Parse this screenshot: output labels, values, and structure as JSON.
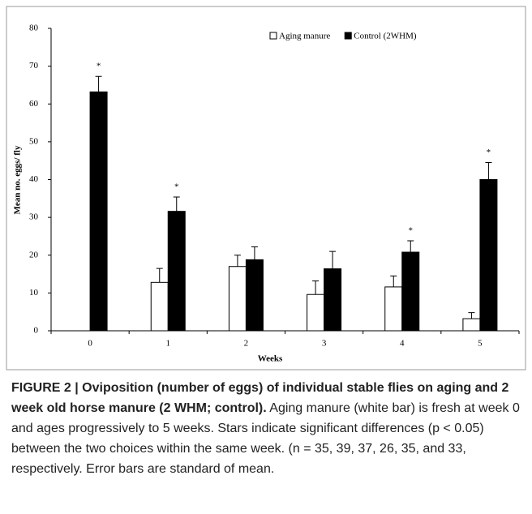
{
  "chart_data": {
    "type": "bar",
    "ylabel": "Mean no. eggs/ fly",
    "xlabel": "Weeks",
    "categories": [
      "0",
      "1",
      "2",
      "3",
      "4",
      "5"
    ],
    "series": [
      {
        "name": "Aging manure",
        "color": "#ffffff",
        "values": [
          0,
          12.8,
          17,
          9.6,
          11.6,
          3.2
        ],
        "errors": [
          0,
          3.7,
          3,
          3.6,
          2.9,
          1.6
        ]
      },
      {
        "name": "Control (2WHM)",
        "color": "#000000",
        "values": [
          63.2,
          31.6,
          18.8,
          16.4,
          20.8,
          40
        ],
        "errors": [
          4.1,
          3.8,
          3.4,
          4.6,
          3,
          4.5
        ]
      }
    ],
    "annotations": [
      {
        "text": "*",
        "category": "0"
      },
      {
        "text": "*",
        "category": "1"
      },
      {
        "text": "*",
        "category": "4"
      },
      {
        "text": "*",
        "category": "5"
      }
    ],
    "ylim": [
      0,
      80
    ],
    "yticks": [
      0,
      10,
      20,
      30,
      40,
      50,
      60,
      70,
      80
    ],
    "grid": false,
    "legend": "top-right"
  },
  "caption": {
    "bold": "FIGURE 2 | Oviposition (number of eggs) of individual stable flies on aging and 2 week old horse manure (2 WHM; control).",
    "text": " Aging manure (white bar) is fresh at week 0 and ages progressively to 5 weeks. Stars indicate significant differences (p < 0.05) between the two choices within the same week. (n = 35, 39, 37, 26, 35, and 33, respectively. Error bars are standard of mean."
  }
}
